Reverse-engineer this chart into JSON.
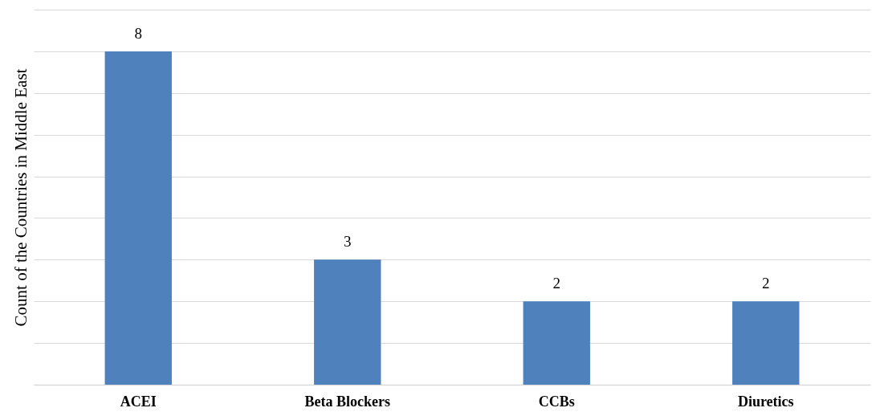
{
  "chart_data": {
    "type": "bar",
    "ylabel": "Count of the Countries in Middle East",
    "categories": [
      "ACEI",
      "Beta Blockers",
      "CCBs",
      "Diuretics"
    ],
    "values": [
      8,
      3,
      2,
      2
    ],
    "color": "#4f81bd",
    "ylim": [
      0,
      9
    ],
    "yticks": [
      {
        "value": 0,
        "label": null
      },
      {
        "value": 1,
        "label": null
      },
      {
        "value": 2,
        "label": null
      },
      {
        "value": 3,
        "label": null
      },
      {
        "value": 4,
        "label": null
      },
      {
        "value": 5,
        "label": null
      },
      {
        "value": 6,
        "label": null
      },
      {
        "value": 7,
        "label": null
      },
      {
        "value": 8,
        "label": null
      },
      {
        "value": 9,
        "label": null
      }
    ],
    "grid": "y",
    "tick_labels": "x",
    "data_labels": true
  }
}
